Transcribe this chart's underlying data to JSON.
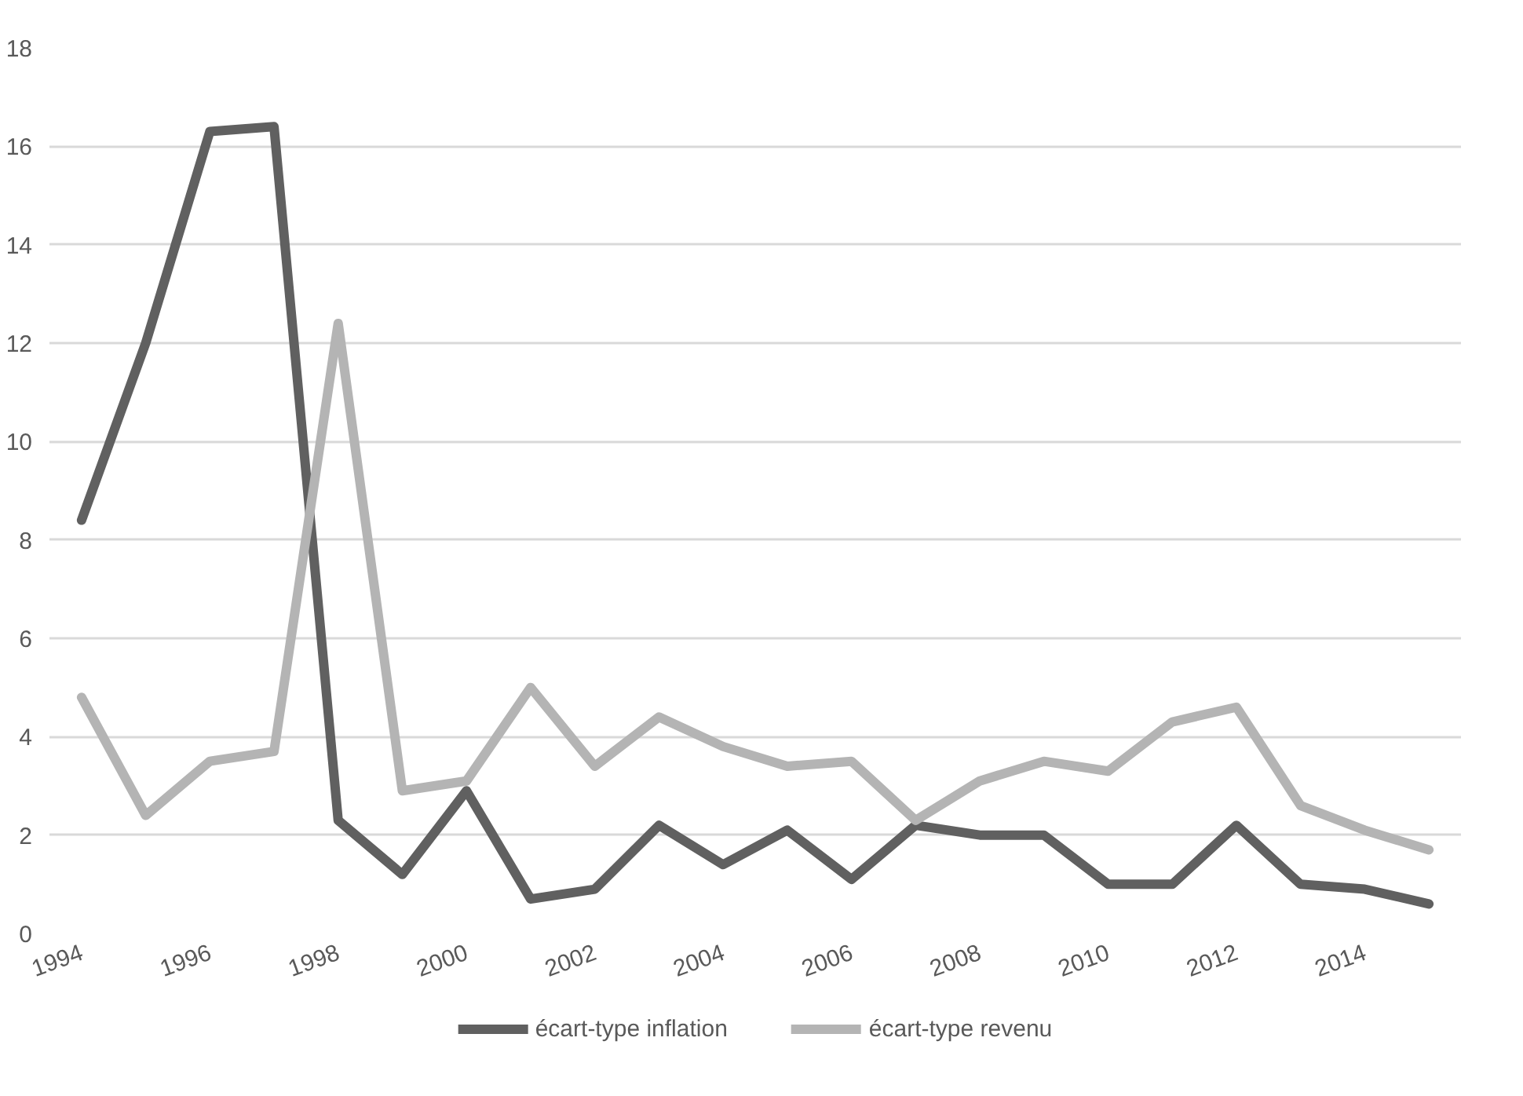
{
  "chart_data": {
    "type": "line",
    "x": [
      1994,
      1995,
      1996,
      1997,
      1998,
      1999,
      2000,
      2001,
      2002,
      2003,
      2004,
      2005,
      2006,
      2007,
      2008,
      2009,
      2010,
      2011,
      2012,
      2013,
      2014,
      2015
    ],
    "series": [
      {
        "name": "écart-type inflation",
        "color": "#606060",
        "values": [
          8.4,
          12.0,
          16.3,
          16.4,
          2.3,
          1.2,
          2.9,
          0.7,
          0.9,
          2.2,
          1.4,
          2.1,
          1.1,
          2.2,
          2.0,
          2.0,
          1.0,
          1.0,
          2.2,
          1.0,
          0.9,
          0.6
        ]
      },
      {
        "name": "écart-type revenu",
        "color": "#b4b4b4",
        "values": [
          4.8,
          2.4,
          3.5,
          3.7,
          12.4,
          2.9,
          3.1,
          5.0,
          3.4,
          4.4,
          3.8,
          3.4,
          3.5,
          2.3,
          3.1,
          3.5,
          3.3,
          4.3,
          4.6,
          2.6,
          2.1,
          1.7
        ]
      }
    ],
    "xlim": [
      1993.5,
      2015.5
    ],
    "xticks": [
      1994,
      1996,
      1998,
      2000,
      2002,
      2004,
      2006,
      2008,
      2010,
      2012,
      2014
    ],
    "ylim": [
      0,
      18
    ],
    "yticks": [
      0,
      2,
      4,
      6,
      8,
      10,
      12,
      14,
      16,
      18
    ],
    "grid": "y",
    "legend": "bottom",
    "line_style": "solid",
    "marker": "none"
  }
}
